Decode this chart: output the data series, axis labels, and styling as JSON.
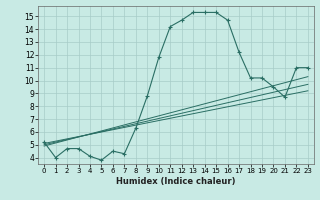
{
  "xlabel": "Humidex (Indice chaleur)",
  "xlim": [
    -0.5,
    23.5
  ],
  "ylim": [
    3.5,
    15.8
  ],
  "yticks": [
    4,
    5,
    6,
    7,
    8,
    9,
    10,
    11,
    12,
    13,
    14,
    15
  ],
  "xticks": [
    0,
    1,
    2,
    3,
    4,
    5,
    6,
    7,
    8,
    9,
    10,
    11,
    12,
    13,
    14,
    15,
    16,
    17,
    18,
    19,
    20,
    21,
    22,
    23
  ],
  "background_color": "#c8eae4",
  "grid_color": "#a8ccc8",
  "line_color": "#2a6e64",
  "main_line_x": [
    0,
    1,
    2,
    3,
    4,
    5,
    6,
    7,
    8,
    9,
    10,
    11,
    12,
    13,
    14,
    15,
    16,
    17,
    18,
    19,
    20,
    21,
    22,
    23
  ],
  "main_line_y": [
    5.2,
    4.0,
    4.7,
    4.7,
    4.1,
    3.8,
    4.5,
    4.3,
    6.3,
    8.8,
    11.8,
    14.2,
    14.7,
    15.3,
    15.3,
    15.3,
    14.7,
    12.2,
    10.2,
    10.2,
    9.5,
    8.7,
    11.0,
    11.0
  ],
  "trend_lines": [
    {
      "x": [
        0,
        23
      ],
      "y": [
        5.1,
        9.2
      ]
    },
    {
      "x": [
        0,
        23
      ],
      "y": [
        5.0,
        9.7
      ]
    },
    {
      "x": [
        0,
        23
      ],
      "y": [
        4.9,
        10.3
      ]
    }
  ]
}
